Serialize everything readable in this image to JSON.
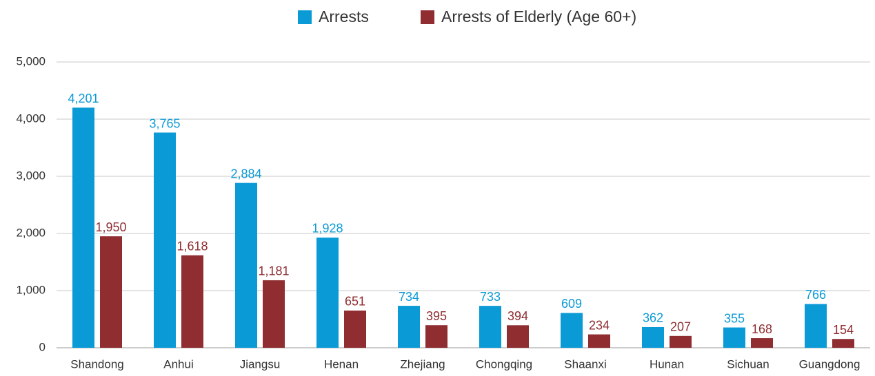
{
  "chart_data": {
    "type": "bar",
    "categories": [
      "Shandong",
      "Anhui",
      "Jiangsu",
      "Henan",
      "Zhejiang",
      "Chongqing",
      "Shaanxi",
      "Hunan",
      "Sichuan",
      "Guangdong"
    ],
    "series": [
      {
        "name": "Arrests",
        "color": "#0a9ad6",
        "values": [
          4201,
          3765,
          2884,
          1928,
          734,
          733,
          609,
          362,
          355,
          766
        ],
        "value_labels": [
          "4,201",
          "3,765",
          "2,884",
          "1,928",
          "734",
          "733",
          "609",
          "362",
          "355",
          "766"
        ]
      },
      {
        "name": "Arrests of Elderly (Age 60+)",
        "color": "#8f2d31",
        "values": [
          1950,
          1618,
          1181,
          651,
          395,
          394,
          234,
          207,
          168,
          154
        ],
        "value_labels": [
          "1,950",
          "1,618",
          "1,181",
          "651",
          "395",
          "394",
          "234",
          "207",
          "168",
          "154"
        ]
      }
    ],
    "ylim": [
      0,
      5000
    ],
    "yticks": [
      0,
      {
        "value": 1000,
        "label": "1,000"
      },
      {
        "value": 2000,
        "label": "2,000"
      },
      {
        "value": 3000,
        "label": "3,000"
      },
      {
        "value": 4000,
        "label": "4,000"
      },
      {
        "value": 5000,
        "label": "5,000"
      }
    ],
    "grid": true,
    "legend": "top"
  }
}
